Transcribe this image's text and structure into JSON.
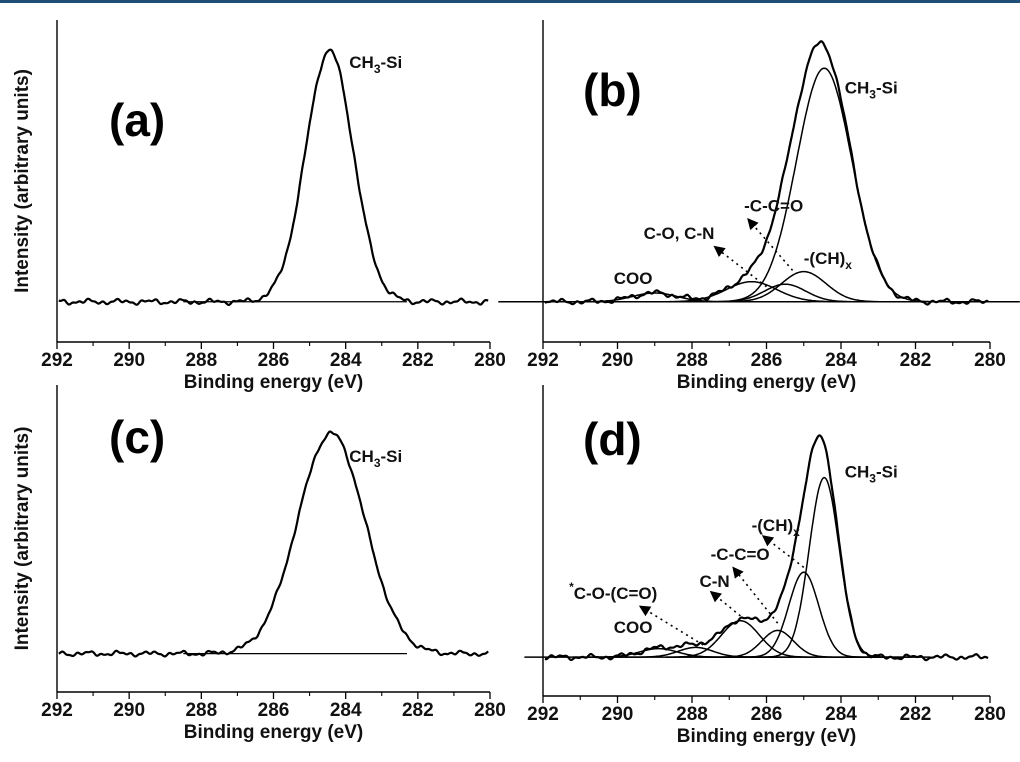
{
  "colors": {
    "top_rule": "#1f4e79",
    "ink": "#000000"
  },
  "chart_data": [
    {
      "id": "a",
      "type": "line",
      "panel_label": "(a)",
      "xlabel": "Binding energy (eV)",
      "ylabel": "Intensity (arbitrary units)",
      "xlim": [
        292,
        280
      ],
      "x_reversed": true,
      "xticks": [
        292,
        290,
        288,
        286,
        284,
        282,
        280
      ],
      "baseline": 0.0,
      "y_max": 1.0,
      "envelope_peak": {
        "center": 284.45,
        "height": 1.0,
        "fwhm": 1.55
      },
      "components": [],
      "labels": [
        {
          "segments": [
            [
              "CH",
              ""
            ],
            [
              "3",
              "sub"
            ],
            [
              "-Si",
              ""
            ]
          ],
          "x": 283.9,
          "y": 0.93
        }
      ],
      "arrows": []
    },
    {
      "id": "b",
      "type": "line",
      "panel_label": "(b)",
      "xlabel": "Binding energy (eV)",
      "ylabel": "",
      "xlim": [
        292,
        280
      ],
      "x_reversed": true,
      "xticks": [
        292,
        290,
        288,
        286,
        284,
        282,
        280
      ],
      "baseline": 0.0,
      "y_max": 1.0,
      "components": [
        {
          "name": "CH3-Si",
          "center": 284.45,
          "height": 0.93,
          "fwhm": 1.75
        },
        {
          "name": "-(CH)x",
          "center": 285.0,
          "height": 0.12,
          "fwhm": 1.4
        },
        {
          "name": "-C-C=O",
          "center": 285.5,
          "height": 0.07,
          "fwhm": 1.3
        },
        {
          "name": "C-O, C-N",
          "center": 286.4,
          "height": 0.08,
          "fwhm": 1.6
        },
        {
          "name": "COO",
          "center": 289.0,
          "height": 0.035,
          "fwhm": 1.4
        }
      ],
      "labels": [
        {
          "segments": [
            [
              "CH",
              ""
            ],
            [
              "3",
              "sub"
            ],
            [
              "-Si",
              ""
            ]
          ],
          "x": 283.9,
          "y": 0.83
        },
        {
          "segments": [
            [
              "-C-C=O",
              ""
            ]
          ],
          "x": 286.6,
          "y": 0.36
        },
        {
          "segments": [
            [
              "C-O, C-N",
              ""
            ]
          ],
          "x": 289.3,
          "y": 0.25
        },
        {
          "segments": [
            [
              "-(CH)",
              ""
            ],
            [
              "x",
              "sub"
            ]
          ],
          "x": 285.0,
          "y": 0.15
        },
        {
          "segments": [
            [
              "COO",
              ""
            ]
          ],
          "x": 290.1,
          "y": 0.07
        }
      ],
      "arrows": [
        {
          "from": [
            285.3,
            0.125
          ],
          "to": [
            286.5,
            0.33
          ]
        },
        {
          "from": [
            286.0,
            0.06
          ],
          "to": [
            287.4,
            0.22
          ]
        }
      ]
    },
    {
      "id": "c",
      "type": "line",
      "panel_label": "(c)",
      "xlabel": "Binding energy (eV)",
      "ylabel": "Intensity (arbitrary units)",
      "xlim": [
        292,
        280
      ],
      "x_reversed": true,
      "xticks": [
        292,
        290,
        288,
        286,
        284,
        282,
        280
      ],
      "baseline": 0.0,
      "y_max": 1.0,
      "envelope_peak": {
        "center": 284.4,
        "height": 0.92,
        "fwhm": 2.2
      },
      "components": [],
      "labels": [
        {
          "segments": [
            [
              "CH",
              ""
            ],
            [
              "3",
              "sub"
            ],
            [
              "-Si",
              ""
            ]
          ],
          "x": 283.9,
          "y": 0.8
        }
      ],
      "arrows": []
    },
    {
      "id": "d",
      "type": "line",
      "panel_label": "(d)",
      "xlabel": "Binding energy (eV)",
      "ylabel": "",
      "xlim": [
        292,
        280
      ],
      "x_reversed": true,
      "xticks": [
        292,
        290,
        288,
        286,
        284,
        282,
        280
      ],
      "baseline": 0.0,
      "y_max": 1.0,
      "components": [
        {
          "name": "CH3-Si",
          "center": 284.45,
          "height": 0.74,
          "fwhm": 0.95
        },
        {
          "name": "-(CH)x",
          "center": 285.0,
          "height": 0.35,
          "fwhm": 0.95
        },
        {
          "name": "-C-C=O",
          "center": 285.7,
          "height": 0.11,
          "fwhm": 1.0
        },
        {
          "name": "C-N",
          "center": 286.7,
          "height": 0.15,
          "fwhm": 1.2
        },
        {
          "name": "*C-O-(C=O)",
          "center": 287.9,
          "height": 0.04,
          "fwhm": 1.1
        },
        {
          "name": "COO",
          "center": 288.9,
          "height": 0.035,
          "fwhm": 1.2
        }
      ],
      "labels": [
        {
          "segments": [
            [
              "CH",
              ""
            ],
            [
              "3",
              "sub"
            ],
            [
              "-Si",
              ""
            ]
          ],
          "x": 283.9,
          "y": 0.74
        },
        {
          "segments": [
            [
              "-(CH)",
              ""
            ],
            [
              "x",
              "sub"
            ]
          ],
          "x": 286.4,
          "y": 0.52
        },
        {
          "segments": [
            [
              "-C-C=O",
              ""
            ]
          ],
          "x": 287.5,
          "y": 0.4
        },
        {
          "segments": [
            [
              "C-N",
              ""
            ]
          ],
          "x": 287.8,
          "y": 0.29
        },
        {
          "segments": [
            [
              "*",
              "sup"
            ],
            [
              "C-O-(C=O)",
              ""
            ]
          ],
          "x": 291.3,
          "y": 0.24
        },
        {
          "segments": [
            [
              "COO",
              ""
            ]
          ],
          "x": 290.1,
          "y": 0.1
        }
      ],
      "arrows": [
        {
          "from": [
            285.0,
            0.37
          ],
          "to": [
            286.1,
            0.5
          ]
        },
        {
          "from": [
            285.7,
            0.14
          ],
          "to": [
            286.9,
            0.37
          ]
        },
        {
          "from": [
            286.7,
            0.17
          ],
          "to": [
            287.5,
            0.27
          ]
        },
        {
          "from": [
            287.7,
            0.05
          ],
          "to": [
            289.4,
            0.21
          ]
        }
      ]
    }
  ]
}
